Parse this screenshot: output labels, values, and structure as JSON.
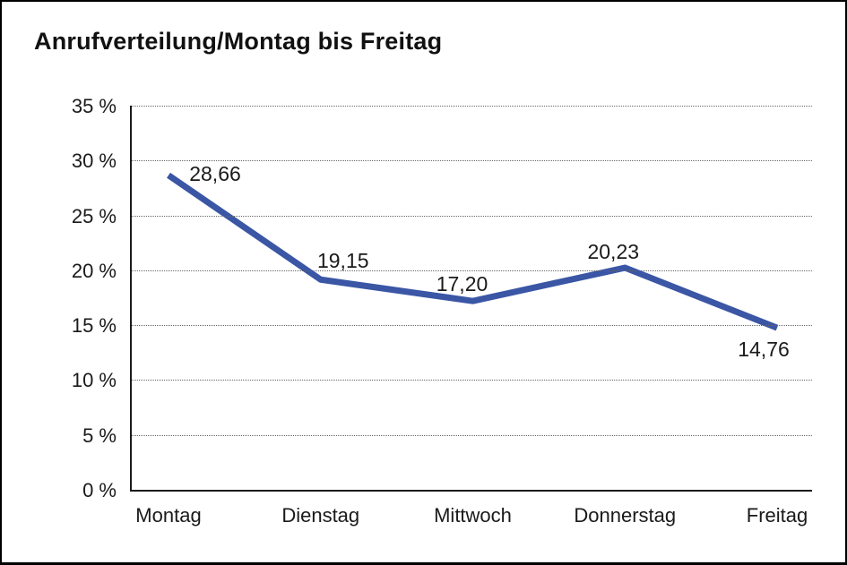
{
  "chart_data": {
    "type": "line",
    "title": "Anrufverteilung/Montag bis Freitag",
    "categories": [
      "Montag",
      "Dienstag",
      "Mittwoch",
      "Donnerstag",
      "Freitag"
    ],
    "values": [
      28.66,
      19.15,
      17.2,
      20.23,
      14.76
    ],
    "value_labels": [
      "28,66",
      "19,15",
      "17,20",
      "20,23",
      "14,76"
    ],
    "ylim": [
      0,
      35
    ],
    "yticks": [
      0,
      5,
      10,
      15,
      20,
      25,
      30,
      35
    ],
    "ytick_labels": [
      "0 %",
      "5 %",
      "10 %",
      "15 %",
      "20 %",
      "25 %",
      "30 %",
      "35 %"
    ],
    "xlabel": "",
    "ylabel": "",
    "legend": "none",
    "grid": "horizontal-dotted",
    "line_color": "#3A56A5",
    "axis_color": "#1a1a1a",
    "text_color": "#1a1a1a"
  }
}
